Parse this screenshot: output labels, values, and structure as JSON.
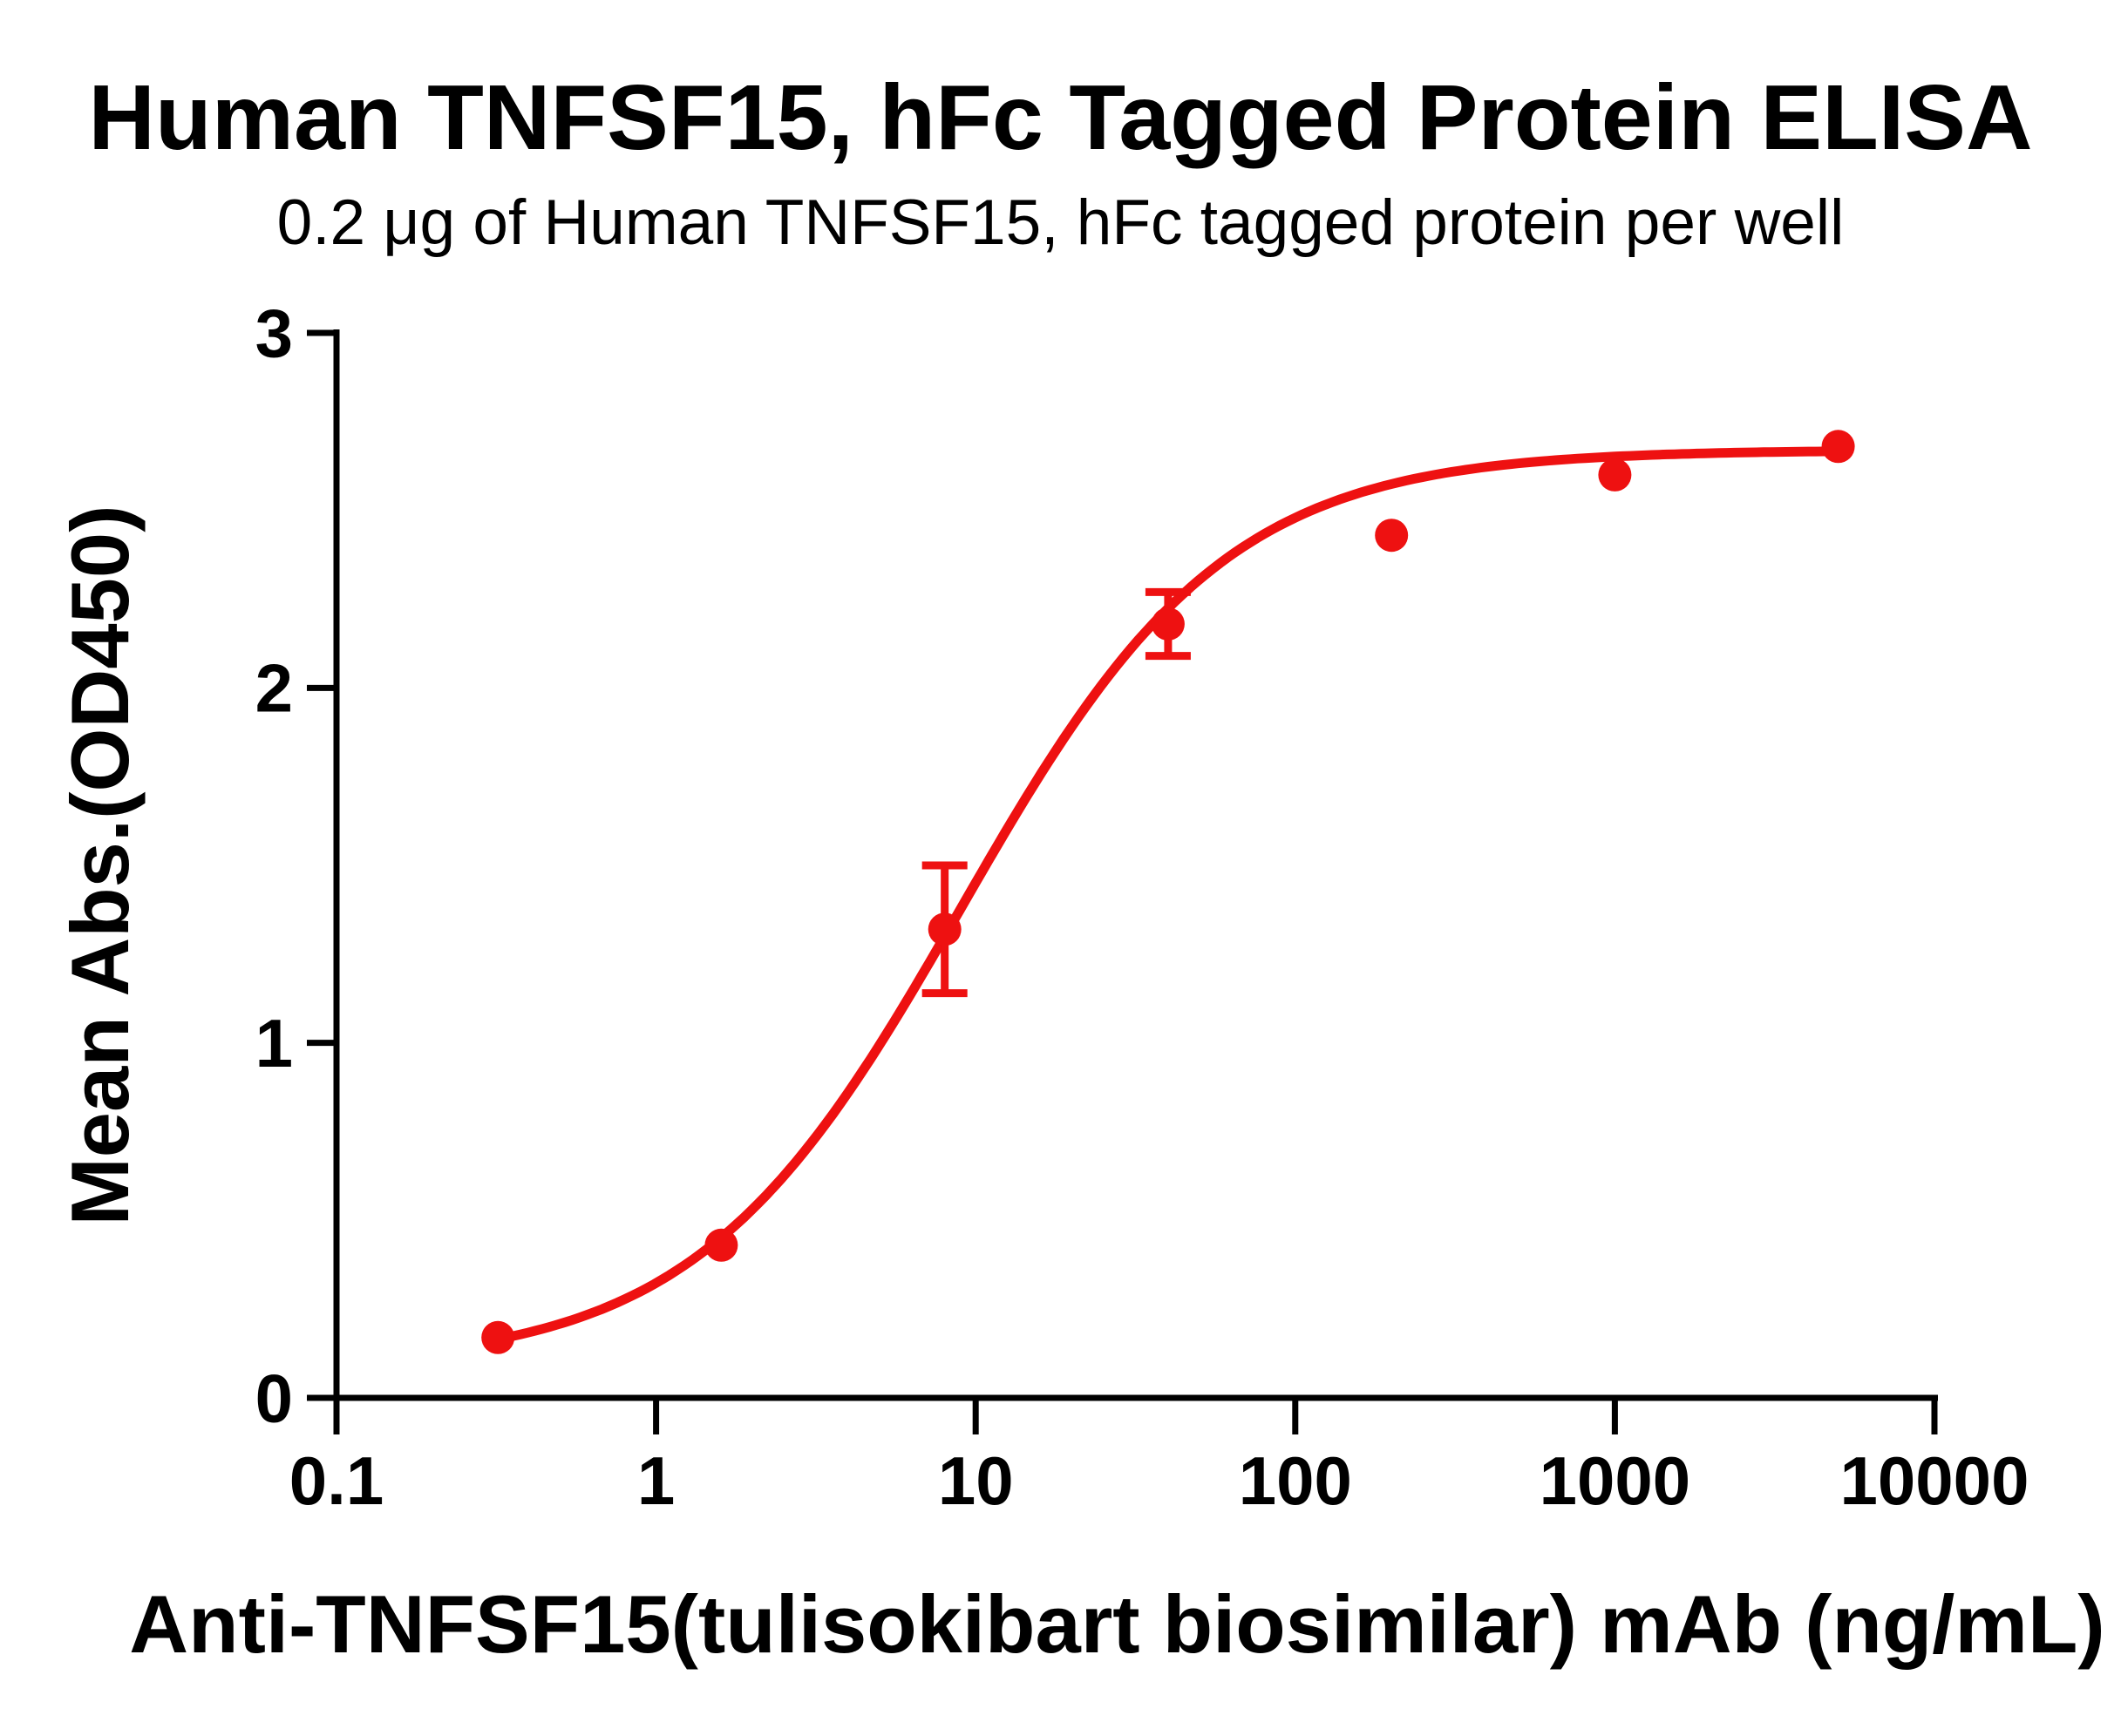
{
  "chart_data": {
    "type": "scatter",
    "title": "Human TNFSF15, hFc Tagged Protein ELISA",
    "subtitle": "0.2 μg of Human TNFSF15, hFc tagged protein per well",
    "xlabel": "Anti-TNFSF15(tulisokibart biosimilar) mAb (ng/mL)",
    "ylabel": "Mean Abs.(OD450)",
    "x_scale": "log10",
    "xlim": [
      0.1,
      10000
    ],
    "ylim": [
      0,
      3
    ],
    "x_ticks": [
      0.1,
      1,
      10,
      100,
      1000,
      10000
    ],
    "x_tick_labels": [
      "0.1",
      "1",
      "10",
      "100",
      "1000",
      "10000"
    ],
    "y_ticks": [
      0,
      1,
      2,
      3
    ],
    "y_tick_labels": [
      "0",
      "1",
      "2",
      "3"
    ],
    "grid": false,
    "legend": false,
    "axis_color": "#000000",
    "series": [
      {
        "name": "Anti-TNFSF15(tulisokibart biosimilar) mAb",
        "color": "#ee1111",
        "marker": "circle",
        "points": [
          {
            "x": 0.32,
            "y": 0.17,
            "err": null
          },
          {
            "x": 1.6,
            "y": 0.43,
            "err": null
          },
          {
            "x": 8,
            "y": 1.32,
            "err": 0.18
          },
          {
            "x": 40,
            "y": 2.18,
            "err": 0.09
          },
          {
            "x": 200,
            "y": 2.43,
            "err": null
          },
          {
            "x": 1000,
            "y": 2.6,
            "err": null
          },
          {
            "x": 5000,
            "y": 2.68,
            "err": null
          }
        ],
        "fit": {
          "model": "4PL",
          "bottom": 0.09,
          "top": 2.67,
          "ec50": 9.0,
          "hill": 1.05,
          "x_from": 0.32,
          "x_to": 5000
        }
      }
    ]
  }
}
